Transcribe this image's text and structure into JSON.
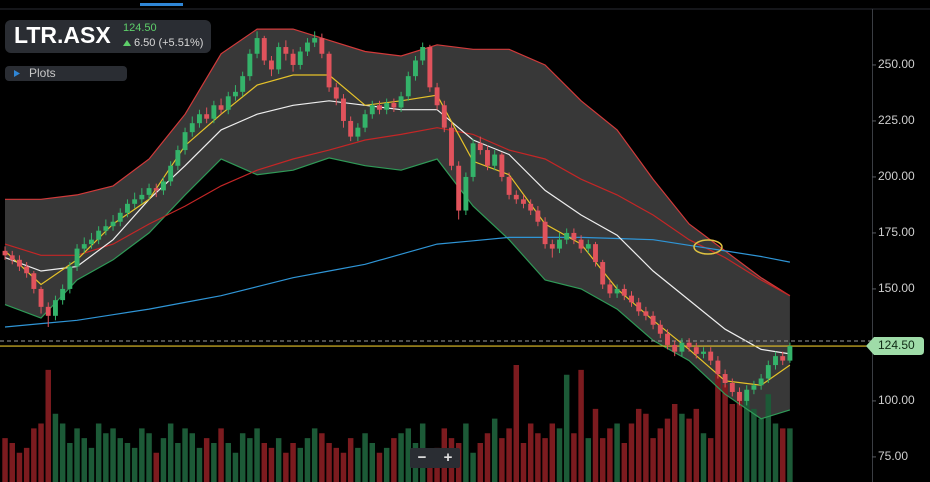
{
  "quote": {
    "symbol": "LTR.ASX",
    "price": "124.50",
    "change": "6.50 (+5.51%)"
  },
  "plots_button": "Plots",
  "zoom_controls": [
    "−",
    "+"
  ],
  "chart_data": {
    "type": "candlestick",
    "xlim": [
      -0.7,
      120.4
    ],
    "ylim": [
      63.8,
      279
    ],
    "yticks": [
      {
        "value": 250,
        "label": "250.00"
      },
      {
        "value": 225,
        "label": "225.00"
      },
      {
        "value": 200,
        "label": "200.00"
      },
      {
        "value": 175,
        "label": "175.00"
      },
      {
        "value": 150,
        "label": "150.00"
      },
      {
        "value": 100,
        "label": "100.00"
      },
      {
        "value": 75,
        "label": "75.00"
      }
    ],
    "last_price": {
      "value": 124.5,
      "label": "124.50",
      "color": "#e6c229",
      "tag_color": "#9fdca8"
    },
    "up_color": "#34b36a",
    "down_color": "#e0535c",
    "volume_up_color": "#1c5a37",
    "volume_down_color": "#7c1b1f",
    "open": [
      167,
      165,
      163,
      160,
      157,
      150,
      142,
      138,
      145,
      150,
      160,
      168,
      170,
      172,
      176,
      178,
      180,
      184,
      188,
      190,
      192,
      195,
      194,
      198,
      205,
      212,
      220,
      224,
      228,
      226,
      232,
      230,
      236,
      238,
      245,
      255,
      262,
      252,
      248,
      258,
      255,
      250,
      256,
      260,
      262,
      255,
      240,
      235,
      225,
      218,
      222,
      228,
      232,
      230,
      233,
      231,
      236,
      245,
      252,
      258,
      240,
      232,
      222,
      205,
      185,
      200,
      215,
      212,
      205,
      210,
      200,
      192,
      190,
      188,
      185,
      180,
      170,
      168,
      172,
      175,
      172,
      168,
      170,
      162,
      152,
      148,
      150,
      147,
      144,
      140,
      138,
      134,
      130,
      125,
      122,
      126,
      124,
      121,
      122,
      118,
      112,
      108,
      104,
      100,
      105,
      107,
      110,
      116,
      120,
      118
    ],
    "high": [
      169,
      167,
      165,
      162,
      158,
      151,
      144,
      147,
      152,
      162,
      170,
      173,
      175,
      178,
      181,
      183,
      186,
      190,
      193,
      195,
      197,
      197,
      200,
      207,
      214,
      222,
      227,
      230,
      231,
      234,
      235,
      238,
      241,
      247,
      257,
      265,
      263,
      254,
      260,
      261,
      257,
      258,
      262,
      265,
      264,
      256,
      242,
      237,
      227,
      224,
      230,
      234,
      234,
      235,
      235,
      238,
      247,
      254,
      260,
      259,
      242,
      234,
      224,
      207,
      202,
      217,
      218,
      214,
      212,
      211,
      202,
      194,
      192,
      190,
      187,
      182,
      172,
      175,
      177,
      177,
      174,
      172,
      171,
      163,
      154,
      152,
      152,
      149,
      146,
      142,
      140,
      136,
      132,
      127,
      128,
      128,
      126,
      124,
      124,
      120,
      114,
      110,
      106,
      107,
      109,
      112,
      118,
      122,
      122,
      126
    ],
    "low": [
      163,
      161,
      158,
      155,
      148,
      139,
      133,
      136,
      143,
      148,
      158,
      166,
      168,
      170,
      174,
      176,
      178,
      182,
      186,
      188,
      190,
      191,
      192,
      196,
      203,
      210,
      218,
      222,
      224,
      224,
      228,
      228,
      234,
      236,
      243,
      253,
      250,
      245,
      246,
      252,
      247,
      248,
      254,
      258,
      253,
      238,
      232,
      222,
      216,
      216,
      220,
      226,
      228,
      228,
      229,
      229,
      234,
      243,
      250,
      238,
      230,
      220,
      203,
      181,
      183,
      198,
      210,
      203,
      203,
      198,
      190,
      188,
      186,
      183,
      178,
      168,
      164,
      166,
      170,
      170,
      166,
      166,
      160,
      150,
      146,
      146,
      145,
      142,
      138,
      136,
      132,
      128,
      123,
      120,
      120,
      122,
      119,
      119,
      116,
      110,
      106,
      102,
      98,
      98,
      103,
      105,
      108,
      114,
      116,
      117
    ],
    "close": [
      165,
      163,
      160,
      157,
      150,
      142,
      138,
      145,
      150,
      160,
      168,
      170,
      172,
      176,
      178,
      180,
      184,
      188,
      190,
      192,
      195,
      194,
      198,
      205,
      212,
      220,
      224,
      228,
      226,
      232,
      230,
      236,
      238,
      245,
      255,
      262,
      252,
      248,
      258,
      255,
      250,
      256,
      260,
      262,
      255,
      240,
      235,
      225,
      218,
      222,
      228,
      232,
      230,
      233,
      231,
      236,
      245,
      252,
      258,
      240,
      232,
      222,
      205,
      185,
      200,
      215,
      212,
      205,
      210,
      200,
      192,
      190,
      188,
      185,
      180,
      170,
      168,
      172,
      175,
      172,
      168,
      170,
      162,
      152,
      148,
      150,
      147,
      144,
      140,
      138,
      134,
      130,
      125,
      122,
      126,
      124,
      121,
      122,
      118,
      112,
      108,
      104,
      100,
      105,
      107,
      110,
      116,
      120,
      118,
      124.5
    ],
    "volume": [
      45,
      40,
      30,
      35,
      55,
      60,
      115,
      70,
      60,
      40,
      55,
      45,
      35,
      60,
      50,
      55,
      45,
      40,
      35,
      55,
      50,
      30,
      45,
      60,
      40,
      55,
      50,
      35,
      45,
      40,
      55,
      40,
      30,
      50,
      45,
      55,
      40,
      35,
      45,
      30,
      40,
      35,
      45,
      55,
      50,
      40,
      35,
      30,
      45,
      35,
      50,
      40,
      30,
      35,
      45,
      50,
      55,
      40,
      60,
      30,
      35,
      55,
      45,
      40,
      60,
      30,
      40,
      50,
      65,
      45,
      55,
      120,
      40,
      60,
      50,
      45,
      60,
      55,
      110,
      50,
      115,
      45,
      75,
      45,
      55,
      60,
      40,
      60,
      75,
      70,
      45,
      55,
      65,
      80,
      70,
      65,
      75,
      50,
      45,
      110,
      100,
      80,
      90,
      85,
      75,
      65,
      90,
      60,
      55,
      55
    ],
    "line_x": [
      0,
      5,
      10,
      15,
      20,
      25,
      30,
      35,
      40,
      45,
      50,
      55,
      60,
      65,
      70,
      75,
      80,
      85,
      90,
      95,
      100,
      105,
      109
    ],
    "bands": {
      "fill": "#383838",
      "upper": {
        "color": "#d23a3a",
        "values": [
          190,
          190,
          192,
          196,
          208,
          228,
          255,
          266,
          266,
          261,
          256,
          254,
          259,
          257,
          257,
          250,
          234,
          221,
          199,
          179,
          167,
          155,
          147
        ]
      },
      "lower": {
        "color": "#2f9a57",
        "values": [
          143,
          137,
          154,
          163,
          175,
          192,
          208,
          201,
          203,
          208.5,
          205,
          203,
          208,
          187,
          172,
          154,
          150,
          141,
          127,
          118,
          103,
          92,
          96
        ]
      }
    },
    "lines": [
      {
        "color": "#c42626",
        "values": [
          170,
          165,
          165,
          170,
          179,
          187,
          196,
          203,
          208,
          212,
          216.5,
          219,
          222,
          219,
          212,
          208,
          199,
          192,
          183,
          172,
          164,
          154,
          147
        ]
      },
      {
        "color": "#2f95d6",
        "values": [
          133,
          134.5,
          136,
          138.5,
          141,
          144,
          147,
          151,
          155,
          158,
          161,
          165.5,
          170,
          171.5,
          173,
          173,
          173,
          172.5,
          172,
          169.5,
          167,
          164.5,
          162
        ]
      },
      {
        "color": "#eeeeee",
        "values": [
          164,
          158,
          160,
          172,
          190,
          205,
          221,
          228,
          232,
          234,
          232,
          230,
          230,
          216.5,
          210,
          194,
          183,
          174,
          158,
          145,
          132,
          123,
          121
        ]
      },
      {
        "color": "#e6c229",
        "values": [
          167,
          152,
          163,
          179,
          190,
          214,
          228,
          241,
          245.5,
          245.5,
          232,
          234,
          236.5,
          207,
          201,
          179,
          170,
          150,
          136,
          123,
          109,
          107,
          116
        ]
      }
    ]
  }
}
